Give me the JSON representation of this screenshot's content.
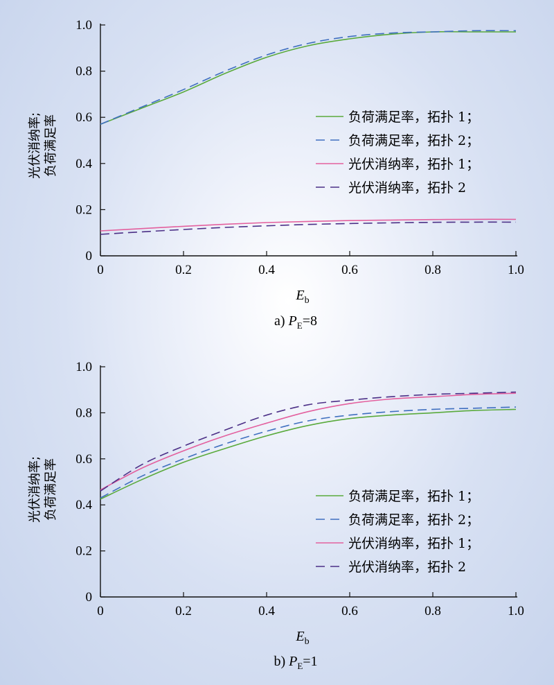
{
  "chart_data": [
    {
      "type": "line",
      "caption": {
        "prefix": "a) ",
        "var": "P",
        "sub": "E",
        "suffix": "=8"
      },
      "xlabel": {
        "var": "E",
        "sub": "b"
      },
      "ylabel": [
        "光伏消纳率;",
        "负荷满足率"
      ],
      "xlim": [
        0,
        1.0
      ],
      "ylim": [
        0,
        1.0
      ],
      "xticks": [
        "0",
        "0.2",
        "0.4",
        "0.6",
        "0.8",
        "1.0"
      ],
      "yticks": [
        "0",
        "0.2",
        "0.4",
        "0.6",
        "0.8",
        "1.0"
      ],
      "legend_position": "right",
      "series": [
        {
          "name": "负荷满足率，拓扑 1；",
          "color": "#5aaa3c",
          "dash": "solid",
          "x": [
            0,
            0.1,
            0.2,
            0.3,
            0.4,
            0.5,
            0.6,
            0.7,
            0.8,
            0.9,
            1.0
          ],
          "y": [
            0.57,
            0.64,
            0.71,
            0.79,
            0.86,
            0.91,
            0.94,
            0.96,
            0.97,
            0.97,
            0.97
          ]
        },
        {
          "name": "负荷满足率，拓扑 2；",
          "color": "#3f6fbf",
          "dash": "dashed",
          "x": [
            0,
            0.1,
            0.2,
            0.3,
            0.4,
            0.5,
            0.6,
            0.7,
            0.8,
            0.9,
            1.0
          ],
          "y": [
            0.57,
            0.645,
            0.72,
            0.8,
            0.87,
            0.92,
            0.95,
            0.965,
            0.97,
            0.975,
            0.975
          ]
        },
        {
          "name": "光伏消纳率，拓扑 1；",
          "color": "#e3609e",
          "dash": "solid",
          "x": [
            0,
            0.1,
            0.2,
            0.3,
            0.4,
            0.5,
            0.6,
            0.7,
            0.8,
            0.9,
            1.0
          ],
          "y": [
            0.108,
            0.118,
            0.128,
            0.137,
            0.144,
            0.149,
            0.153,
            0.155,
            0.157,
            0.158,
            0.158
          ]
        },
        {
          "name": "光伏消纳率，拓扑 2",
          "color": "#4b2f86",
          "dash": "dashed",
          "x": [
            0,
            0.1,
            0.2,
            0.3,
            0.4,
            0.5,
            0.6,
            0.7,
            0.8,
            0.9,
            1.0
          ],
          "y": [
            0.093,
            0.104,
            0.114,
            0.123,
            0.13,
            0.136,
            0.14,
            0.143,
            0.145,
            0.146,
            0.146
          ]
        }
      ]
    },
    {
      "type": "line",
      "caption": {
        "prefix": "b) ",
        "var": "P",
        "sub": "E",
        "suffix": "=1"
      },
      "xlabel": {
        "var": "E",
        "sub": "b"
      },
      "ylabel": [
        "光伏消纳率;",
        "负荷满足率"
      ],
      "xlim": [
        0,
        1.0
      ],
      "ylim": [
        0,
        1.0
      ],
      "xticks": [
        "0",
        "0.2",
        "0.4",
        "0.6",
        "0.8",
        "1.0"
      ],
      "yticks": [
        "0",
        "0.2",
        "0.4",
        "0.6",
        "0.8",
        "1.0"
      ],
      "legend_position": "right",
      "series": [
        {
          "name": "负荷满足率，拓扑 1；",
          "color": "#5aaa3c",
          "dash": "solid",
          "x": [
            0,
            0.1,
            0.2,
            0.3,
            0.4,
            0.5,
            0.6,
            0.7,
            0.8,
            0.9,
            1.0
          ],
          "y": [
            0.425,
            0.51,
            0.585,
            0.645,
            0.7,
            0.745,
            0.775,
            0.79,
            0.8,
            0.81,
            0.815
          ]
        },
        {
          "name": "负荷满足率，拓扑 2；",
          "color": "#3f6fbf",
          "dash": "dashed",
          "x": [
            0,
            0.1,
            0.2,
            0.3,
            0.4,
            0.5,
            0.6,
            0.7,
            0.8,
            0.9,
            1.0
          ],
          "y": [
            0.43,
            0.525,
            0.6,
            0.665,
            0.72,
            0.765,
            0.79,
            0.805,
            0.815,
            0.82,
            0.825
          ]
        },
        {
          "name": "光伏消纳率，拓扑 1；",
          "color": "#e3609e",
          "dash": "solid",
          "x": [
            0,
            0.1,
            0.2,
            0.3,
            0.4,
            0.5,
            0.6,
            0.7,
            0.8,
            0.9,
            1.0
          ],
          "y": [
            0.465,
            0.56,
            0.635,
            0.7,
            0.755,
            0.805,
            0.84,
            0.86,
            0.87,
            0.88,
            0.885
          ]
        },
        {
          "name": "光伏消纳率，拓扑 2",
          "color": "#4b2f86",
          "dash": "dashed",
          "x": [
            0,
            0.1,
            0.2,
            0.3,
            0.4,
            0.5,
            0.6,
            0.7,
            0.8,
            0.9,
            1.0
          ],
          "y": [
            0.46,
            0.575,
            0.655,
            0.725,
            0.79,
            0.835,
            0.855,
            0.87,
            0.88,
            0.885,
            0.89
          ]
        }
      ]
    }
  ]
}
